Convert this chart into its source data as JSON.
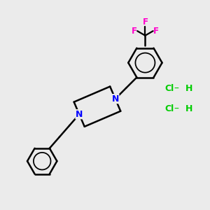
{
  "background_color": "#ebebeb",
  "line_color": "#000000",
  "N_color": "#0000ff",
  "F_color": "#ff00cc",
  "Cl_color": "#00cc00",
  "line_width": 1.8,
  "figsize": [
    3.0,
    3.0
  ],
  "dpi": 100,
  "xlim": [
    0,
    10
  ],
  "ylim": [
    0,
    10
  ],
  "HCl1_x": 7.9,
  "HCl1_y": 5.8,
  "HCl2_x": 7.9,
  "HCl2_y": 4.8
}
